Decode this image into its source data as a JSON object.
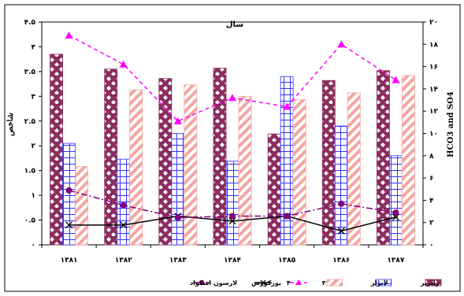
{
  "chart_data": {
    "type": "bar",
    "title": "سال",
    "y1label": "شاخص",
    "y2label": "HCO3 and SO4",
    "categories": [
      "۱۳۸۱",
      "۱۳۸۲",
      "۱۳۸۳",
      "۱۳۸۴",
      "۱۳۸۵",
      "۱۳۸۶",
      "۱۳۸۷"
    ],
    "y1_ticks": [
      {
        "value": 0,
        "label": "۰"
      },
      {
        "value": 0.5,
        "label": "۰.۵"
      },
      {
        "value": 1,
        "label": "۱"
      },
      {
        "value": 1.5,
        "label": "۱.۵"
      },
      {
        "value": 2,
        "label": "۲"
      },
      {
        "value": 2.5,
        "label": "۲.۵"
      },
      {
        "value": 3,
        "label": "۳"
      },
      {
        "value": 3.5,
        "label": "۳.۵"
      },
      {
        "value": 4,
        "label": "۴"
      },
      {
        "value": 4.5,
        "label": "۴.۵"
      }
    ],
    "y2_ticks": [
      {
        "value": 0,
        "label": "۰"
      },
      {
        "value": 2,
        "label": "۲"
      },
      {
        "value": 4,
        "label": "۴"
      },
      {
        "value": 6,
        "label": "۶"
      },
      {
        "value": 8,
        "label": "۸"
      },
      {
        "value": 10,
        "label": "۱۰"
      },
      {
        "value": 12,
        "label": "۱۲"
      },
      {
        "value": 14,
        "label": "۱۴"
      },
      {
        "value": 16,
        "label": "۱۶"
      },
      {
        "value": 18,
        "label": "۱۸"
      },
      {
        "value": 20,
        "label": "۲۰"
      }
    ],
    "y1lim": [
      0,
      4.5
    ],
    "y2lim": [
      0,
      20
    ],
    "bar_series": [
      {
        "name": "رایزنر",
        "axis": "left",
        "color": "#8b2d5e",
        "values": [
          3.85,
          3.55,
          3.36,
          3.57,
          2.24,
          3.32,
          3.52
        ]
      },
      {
        "name": "لانژلر",
        "axis": "left",
        "color": "#3333ff",
        "values": [
          2.05,
          1.73,
          2.25,
          1.69,
          3.4,
          2.4,
          1.8
        ]
      },
      {
        "name": "۳",
        "axis": "left",
        "color": "#f4a6a0",
        "values": [
          1.58,
          3.13,
          3.23,
          3.0,
          2.93,
          3.07,
          3.42
        ]
      }
    ],
    "line_series": [
      {
        "name": "۴",
        "axis": "right",
        "color": "#ff00ff",
        "style": "dashed",
        "marker": "triangle",
        "values": [
          18.8,
          16.2,
          11.1,
          13.2,
          12.4,
          18.0,
          14.8
        ]
      },
      {
        "name": "یورکورس",
        "axis": "left",
        "color": "#000000",
        "style": "solid",
        "marker": "x",
        "values": [
          0.4,
          0.4,
          0.58,
          0.48,
          0.58,
          0.28,
          0.56
        ]
      },
      {
        "name": "لارسون اسکواد",
        "axis": "left",
        "color": "#800080",
        "style": "dashdot",
        "marker": "circle",
        "values": [
          1.1,
          0.8,
          0.55,
          0.58,
          0.58,
          0.83,
          0.65
        ]
      }
    ],
    "grid": false,
    "legend_position": "bottom"
  },
  "legend_order": [
    {
      "series_kind": "bar",
      "index": 0
    },
    {
      "series_kind": "bar",
      "index": 1
    },
    {
      "series_kind": "bar",
      "index": 2
    },
    {
      "series_kind": "line",
      "index": 0
    },
    {
      "series_kind": "line",
      "index": 1
    },
    {
      "series_kind": "line",
      "index": 2
    }
  ]
}
